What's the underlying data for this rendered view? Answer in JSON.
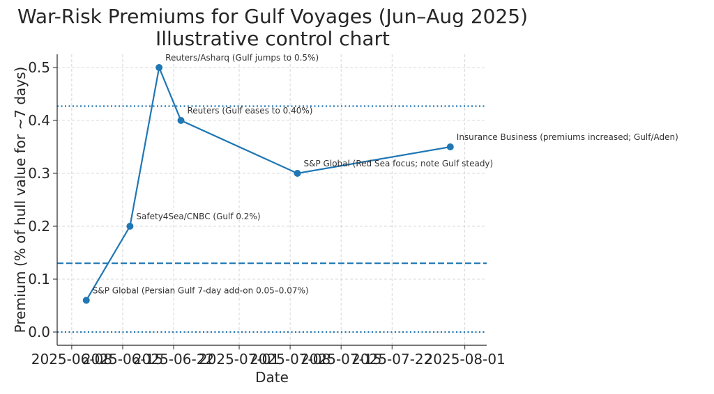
{
  "chart_data": {
    "type": "line",
    "title": "War-Risk Premiums for Gulf Voyages (Jun–Aug 2025)",
    "subtitle": "Illustrative control chart",
    "xlabel": "Date",
    "ylabel": "Premium (% of hull value for ~7 days)",
    "xlim": [
      "2025-06-06",
      "2025-08-04"
    ],
    "ylim": [
      -0.025,
      0.525
    ],
    "x_ticks": [
      "2025-06-08",
      "2025-06-15",
      "2025-06-22",
      "2025-07-01",
      "2025-07-08",
      "2025-07-15",
      "2025-07-22",
      "2025-08-01"
    ],
    "y_ticks": [
      "0.0",
      "0.1",
      "0.2",
      "0.3",
      "0.4",
      "0.5"
    ],
    "grid": true,
    "color": "#1f77b4",
    "series": [
      {
        "points": [
          {
            "x": "2025-06-10",
            "y": 0.06,
            "label": "S&P Global (Persian Gulf 7-day add-on 0.05–0.07%)"
          },
          {
            "x": "2025-06-16",
            "y": 0.2,
            "label": "Safety4Sea/CNBC (Gulf 0.2%)"
          },
          {
            "x": "2025-06-20",
            "y": 0.5,
            "label": "Reuters/Asharq (Gulf jumps to 0.5%)"
          },
          {
            "x": "2025-06-23",
            "y": 0.4,
            "label": "Reuters (Gulf eases to 0.40%)"
          },
          {
            "x": "2025-07-09",
            "y": 0.3,
            "label": "S&P Global (Red Sea focus; note Gulf steady)"
          },
          {
            "x": "2025-07-30",
            "y": 0.35,
            "label": "Insurance Business (premiums increased; Gulf/Aden)"
          }
        ]
      }
    ],
    "reference_lines": [
      {
        "y": 0.427,
        "style": "dotted"
      },
      {
        "y": 0.13,
        "style": "dashed"
      },
      {
        "y": 0.0,
        "style": "dotted"
      }
    ]
  }
}
